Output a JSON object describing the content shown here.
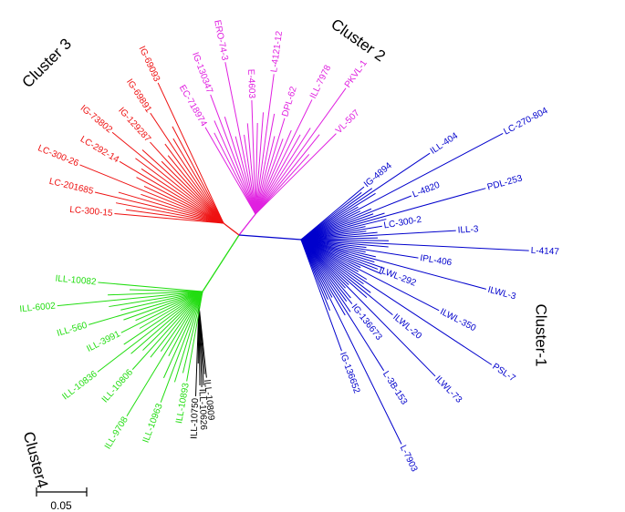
{
  "clusters": [
    {
      "title": "Cluster-1",
      "color": "#0000cc",
      "leaves": [
        "IG-4894",
        "ILL-404",
        "LC-270-804",
        "L-4820",
        "PDL-253",
        "LC-300-2",
        "ILL-3",
        "L-4147",
        "IPL-406",
        "ILWL-3",
        "ILWL-292",
        "ILWL-350",
        "PSL-7",
        "ILWL-20",
        "ILWL-73",
        "IG-136673",
        "L-3B-153",
        "L-7903",
        "IG-136652"
      ]
    },
    {
      "title": "Cluster 2",
      "color": "#e020e0",
      "leaves": [
        "EC-718974",
        "IG-130347",
        "ERO-74-3",
        "E-4603",
        "L-4121-12",
        "DPL-62",
        "ILL-7978",
        "PKVL-1",
        "VL-507"
      ]
    },
    {
      "title": "Cluster 3",
      "color": "#ee1111",
      "leaves": [
        "LC-300-15",
        "LC-201685",
        "LC-300-26",
        "LC-292-14",
        "IG-73802",
        "IG-129287",
        "IG-69891",
        "IG-69093"
      ]
    },
    {
      "title": "Cluster4",
      "color": "#22dd11",
      "leaves": [
        "ILL-10893",
        "ILL-10963",
        "ILL-9708",
        "ILL-10806",
        "ILL-10836",
        "ILL-3991",
        "ILL-560",
        "ILL-6002",
        "ILL-10082"
      ]
    },
    {
      "color": "#000000",
      "leaves": [
        "ILL-10809",
        "ILL-10626",
        "ILL-10750"
      ]
    }
  ],
  "scale_bar": {
    "label": "0.05"
  }
}
